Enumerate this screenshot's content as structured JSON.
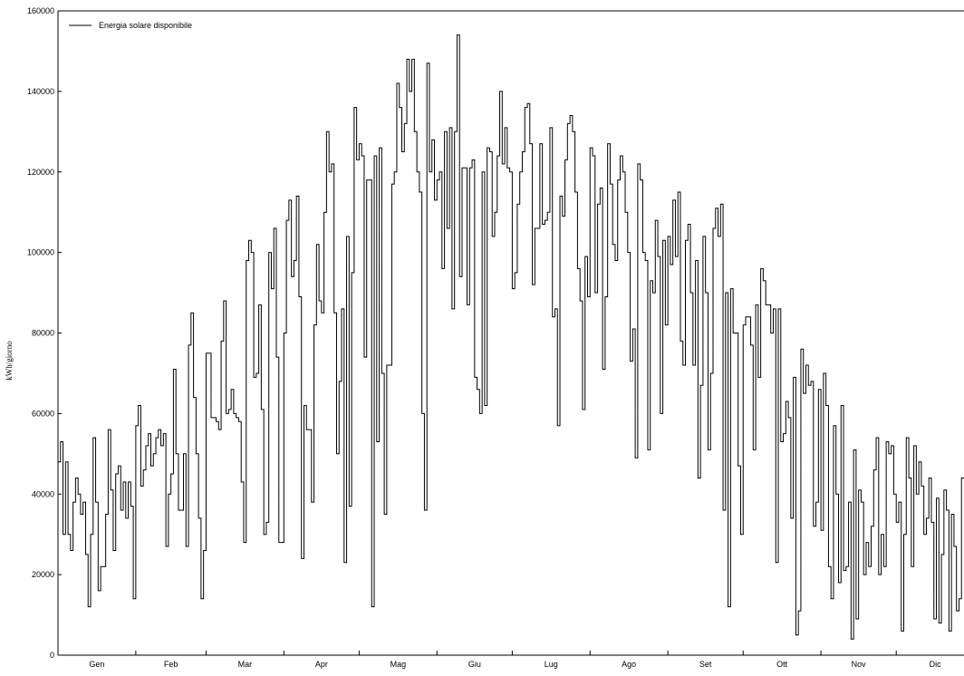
{
  "chart_data": {
    "type": "line",
    "step": true,
    "ylabel": "kWh/giorno",
    "xlabel": "",
    "ylim": [
      0,
      160000
    ],
    "yticks": [
      0,
      20000,
      40000,
      60000,
      80000,
      100000,
      120000,
      140000,
      160000
    ],
    "month_labels": [
      "Gen",
      "Feb",
      "Mar",
      "Apr",
      "Mag",
      "Giu",
      "Lug",
      "Ago",
      "Set",
      "Ott",
      "Nov",
      "Dic"
    ],
    "legend_position": "top-left",
    "line_color": "#000000",
    "series": [
      {
        "name": "Energia solare disponibile",
        "x_unit": "day of year",
        "values": [
          48000,
          53000,
          30000,
          48000,
          30000,
          26000,
          38000,
          44000,
          40000,
          35000,
          38000,
          25000,
          12000,
          30000,
          54000,
          38000,
          16000,
          22000,
          22000,
          35000,
          56000,
          41000,
          26000,
          45000,
          47000,
          36000,
          43000,
          34000,
          43000,
          37000,
          14000,
          57000,
          62000,
          42000,
          46000,
          52000,
          55000,
          47000,
          50000,
          54000,
          56000,
          52000,
          55000,
          27000,
          40000,
          45000,
          71000,
          50000,
          36000,
          36000,
          50000,
          27000,
          77000,
          85000,
          64000,
          50000,
          34000,
          14000,
          26000,
          75000,
          75000,
          59000,
          59000,
          58000,
          56000,
          78000,
          88000,
          60000,
          61000,
          66000,
          60000,
          59000,
          58000,
          43000,
          28000,
          98000,
          103000,
          100000,
          69000,
          70000,
          87000,
          61000,
          30000,
          33000,
          100000,
          91000,
          106000,
          74000,
          28000,
          28000,
          80000,
          108000,
          113000,
          94000,
          98000,
          114000,
          89000,
          24000,
          62000,
          56000,
          56000,
          38000,
          82000,
          102000,
          88000,
          85000,
          110000,
          130000,
          120000,
          122000,
          85000,
          50000,
          68000,
          86000,
          23000,
          104000,
          37000,
          95000,
          136000,
          123000,
          127000,
          124000,
          74000,
          118000,
          118000,
          12000,
          124000,
          53000,
          126000,
          70000,
          35000,
          72000,
          72000,
          117000,
          120000,
          142000,
          136000,
          125000,
          132000,
          148000,
          140000,
          148000,
          130000,
          120000,
          115000,
          60000,
          36000,
          147000,
          120000,
          128000,
          113000,
          118000,
          120000,
          96000,
          130000,
          106000,
          131000,
          86000,
          130000,
          154000,
          94000,
          121000,
          121000,
          87000,
          121000,
          123000,
          69000,
          66000,
          60000,
          120000,
          62000,
          126000,
          125000,
          104000,
          110000,
          124000,
          140000,
          122000,
          131000,
          121000,
          120000,
          91000,
          95000,
          112000,
          120000,
          125000,
          136000,
          137000,
          127000,
          92000,
          106000,
          106000,
          127000,
          107000,
          108000,
          110000,
          131000,
          84000,
          86000,
          57000,
          114000,
          109000,
          123000,
          132000,
          134000,
          130000,
          115000,
          96000,
          88000,
          61000,
          99000,
          89000,
          126000,
          124000,
          90000,
          112000,
          116000,
          71000,
          89000,
          127000,
          117000,
          102000,
          98000,
          118000,
          124000,
          120000,
          110000,
          100000,
          73000,
          81000,
          49000,
          122000,
          118000,
          100000,
          98000,
          51000,
          93000,
          90000,
          108000,
          99000,
          60000,
          103000,
          82000,
          104000,
          97000,
          113000,
          99000,
          115000,
          78000,
          72000,
          103000,
          107000,
          90000,
          72000,
          98000,
          44000,
          67000,
          104000,
          90000,
          51000,
          70000,
          106000,
          111000,
          104000,
          112000,
          36000,
          90000,
          12000,
          91000,
          80000,
          80000,
          47000,
          30000,
          82000,
          84000,
          84000,
          77000,
          51000,
          87000,
          69000,
          96000,
          93000,
          87000,
          87000,
          80000,
          86000,
          23000,
          86000,
          53000,
          55000,
          63000,
          59000,
          34000,
          69000,
          5000,
          11000,
          76000,
          65000,
          72000,
          67000,
          68000,
          32000,
          38000,
          66000,
          31000,
          70000,
          62000,
          22000,
          14000,
          57000,
          40000,
          18000,
          62000,
          21000,
          22000,
          38000,
          4000,
          51000,
          9000,
          41000,
          38000,
          20000,
          28000,
          22000,
          32000,
          46000,
          54000,
          20000,
          30000,
          22000,
          53000,
          50000,
          52000,
          40000,
          33000,
          38000,
          6000,
          30000,
          54000,
          44000,
          22000,
          52000,
          40000,
          48000,
          42000,
          30000,
          34000,
          44000,
          33000,
          9000,
          39000,
          8000,
          25000,
          41000,
          36000,
          6000,
          35000,
          27000,
          11000,
          14000,
          44000
        ]
      }
    ]
  }
}
